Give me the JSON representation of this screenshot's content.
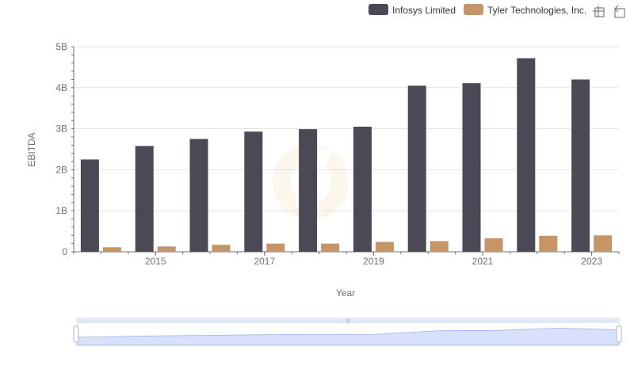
{
  "toolbar": {
    "zoom_icon": "zoom-select-icon",
    "restore_icon": "restore-icon"
  },
  "chart_data": {
    "type": "bar",
    "categories": [
      "2014",
      "2015",
      "2016",
      "2017",
      "2018",
      "2019",
      "2020",
      "2021",
      "2022",
      "2023"
    ],
    "x_tick_labels": [
      "2015",
      "2017",
      "2019",
      "2021",
      "2023"
    ],
    "y_tick_labels": [
      "0",
      "1B",
      "2B",
      "3B",
      "4B",
      "5B"
    ],
    "series": [
      {
        "name": "Infosys Limited",
        "color": "#4a4955",
        "values": [
          2.25,
          2.58,
          2.75,
          2.93,
          2.99,
          3.05,
          4.05,
          4.11,
          4.72,
          4.2
        ]
      },
      {
        "name": "Tyler Technologies, Inc.",
        "color": "#c79466",
        "values": [
          0.11,
          0.13,
          0.17,
          0.2,
          0.2,
          0.24,
          0.26,
          0.33,
          0.39,
          0.4
        ]
      }
    ],
    "value_unit": "billions",
    "xlabel": "Year",
    "ylabel": "EBITDA",
    "ylim": [
      0,
      5
    ],
    "grid": true,
    "legend_position": "top-right"
  }
}
